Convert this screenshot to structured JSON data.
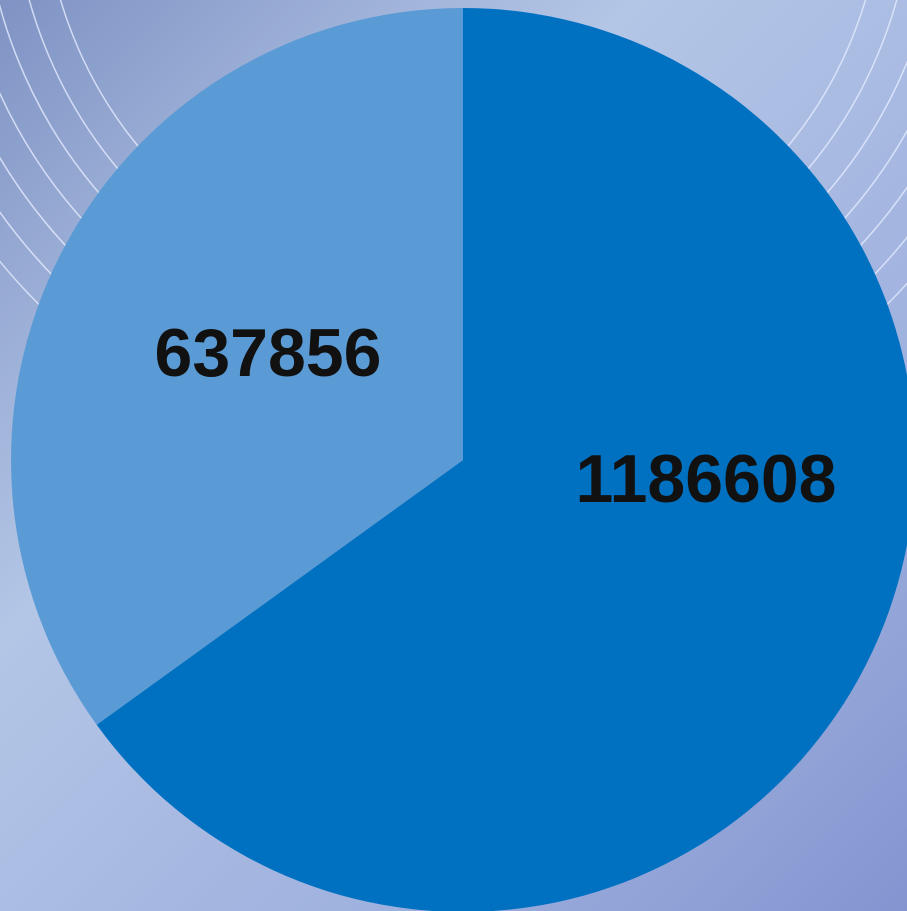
{
  "chart_data": {
    "type": "pie",
    "values": [
      1186608,
      637856
    ],
    "colors": [
      "#0070c0",
      "#5b9bd5"
    ],
    "start_angle": 0,
    "direction": "clockwise"
  }
}
